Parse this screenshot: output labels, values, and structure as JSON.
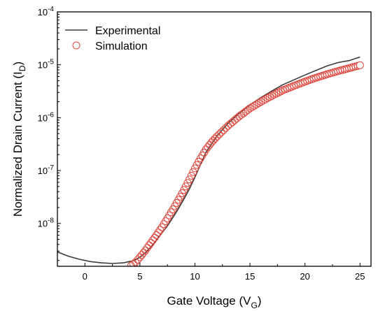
{
  "chart_data": {
    "type": "line",
    "xlabel": {
      "main": "Gate Voltage (V",
      "sub": "G",
      "end": ")"
    },
    "ylabel": {
      "main": "Normalized Drain Current (I",
      "sub": "D",
      "end": ")"
    },
    "xlim": [
      -2.5,
      26
    ],
    "ylim": [
      1.55e-09,
      0.0001
    ],
    "yscale": "log",
    "x_ticks": [
      0,
      5,
      10,
      15,
      20,
      25
    ],
    "x_tick_labels": [
      "0",
      "5",
      "10",
      "15",
      "20",
      "25"
    ],
    "y_ticks": [
      1e-08,
      1e-07,
      1e-06,
      1e-05,
      0.0001
    ],
    "y_tick_labels": [
      {
        "base": "10",
        "exp": "-8"
      },
      {
        "base": "10",
        "exp": "-7"
      },
      {
        "base": "10",
        "exp": "-6"
      },
      {
        "base": "10",
        "exp": "-5"
      },
      {
        "base": "10",
        "exp": "-4"
      }
    ],
    "legend": "top-left",
    "grid": false,
    "colors": {
      "experimental": "#3a3a3a",
      "simulation": "#e0463c"
    },
    "series": [
      {
        "name": "Experimental",
        "style": "line",
        "x": [
          -2.5,
          -1.5,
          -0.5,
          0.5,
          1.5,
          2.5,
          3.5,
          4.0,
          4.5,
          5.0,
          5.5,
          6.0,
          6.5,
          7.0,
          7.5,
          8.0,
          8.5,
          9.0,
          9.5,
          10.0,
          10.5,
          11.0,
          12.0,
          13.0,
          14.0,
          15.0,
          16.0,
          17.0,
          18.0,
          19.0,
          20.0,
          21.0,
          22.0,
          23.0,
          24.0,
          25.0
        ],
        "y": [
          2.9e-09,
          2.4e-09,
          2.1e-09,
          1.9e-09,
          1.8e-09,
          1.75e-09,
          1.8e-09,
          1.9e-09,
          2e-09,
          2.3e-09,
          2.8e-09,
          3.6e-09,
          4.8e-09,
          6.6e-09,
          9e-09,
          1.3e-08,
          1.9e-08,
          2.9e-08,
          4.5e-08,
          7.5e-08,
          1.3e-07,
          2.2e-07,
          4.5e-07,
          7.8e-07,
          1.2e-06,
          1.75e-06,
          2.4e-06,
          3.2e-06,
          4.2e-06,
          5.2e-06,
          6.4e-06,
          7.8e-06,
          9.5e-06,
          1.1e-05,
          1.2e-05,
          1.4e-05
        ]
      },
      {
        "name": "Simulation",
        "style": "markers",
        "x": [
          4.2,
          4.6,
          5.0,
          5.5,
          6.0,
          6.5,
          7.0,
          7.5,
          8.0,
          8.5,
          9.0,
          9.5,
          10.0,
          10.5,
          11.0,
          11.5,
          12.0,
          13.0,
          14.0,
          15.0,
          16.0,
          17.0,
          18.0,
          19.0,
          20.0,
          21.0,
          22.0,
          23.0,
          24.0,
          25.0
        ],
        "y": [
          1.6e-09,
          1.85e-09,
          2.3e-09,
          3.1e-09,
          4.3e-09,
          6e-09,
          8.5e-09,
          1.25e-08,
          1.85e-08,
          2.8e-08,
          4.3e-08,
          6.8e-08,
          1.1e-07,
          1.7e-07,
          2.5e-07,
          3.4e-07,
          4.4e-07,
          7e-07,
          1.05e-06,
          1.5e-06,
          2e-06,
          2.6e-06,
          3.3e-06,
          4e-06,
          4.8e-06,
          5.7e-06,
          6.6e-06,
          7.6e-06,
          8.6e-06,
          9.8e-06
        ]
      }
    ]
  }
}
